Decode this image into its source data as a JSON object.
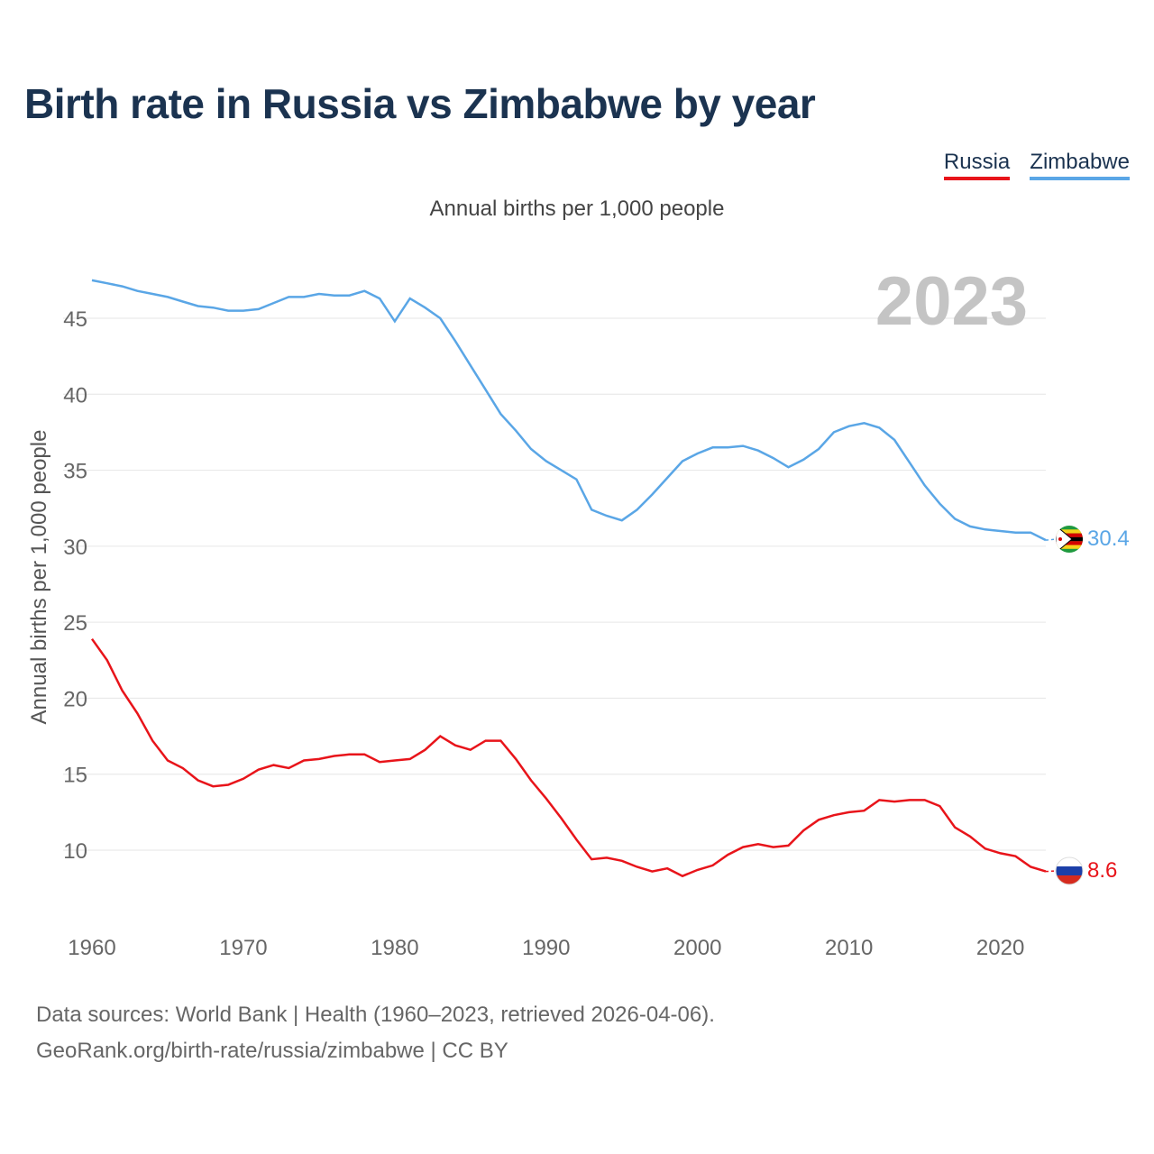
{
  "chart_data": {
    "type": "line",
    "title": "Birth rate in Russia vs Zimbabwe by year",
    "subtitle": "Annual births per 1,000 people",
    "ylabel": "Annual births per 1,000 people",
    "xlabel": "",
    "year_label": "2023",
    "xlim": [
      1960,
      2023
    ],
    "ylim": [
      7,
      48
    ],
    "x_ticks": [
      1960,
      1970,
      1980,
      1990,
      2000,
      2010,
      2020
    ],
    "y_ticks": [
      10,
      15,
      20,
      25,
      30,
      35,
      40,
      45
    ],
    "x": [
      1960,
      1961,
      1962,
      1963,
      1964,
      1965,
      1966,
      1967,
      1968,
      1969,
      1970,
      1971,
      1972,
      1973,
      1974,
      1975,
      1976,
      1977,
      1978,
      1979,
      1980,
      1981,
      1982,
      1983,
      1984,
      1985,
      1986,
      1987,
      1988,
      1989,
      1990,
      1991,
      1992,
      1993,
      1994,
      1995,
      1996,
      1997,
      1998,
      1999,
      2000,
      2001,
      2002,
      2003,
      2004,
      2005,
      2006,
      2007,
      2008,
      2009,
      2010,
      2011,
      2012,
      2013,
      2014,
      2015,
      2016,
      2017,
      2018,
      2019,
      2020,
      2021,
      2022,
      2023
    ],
    "series": [
      {
        "name": "Russia",
        "color": "#e8141a",
        "end_label": "8.6",
        "values": [
          23.9,
          22.5,
          20.5,
          19.0,
          17.2,
          15.9,
          15.4,
          14.6,
          14.2,
          14.3,
          14.7,
          15.3,
          15.6,
          15.4,
          15.9,
          16.0,
          16.2,
          16.3,
          16.3,
          15.8,
          15.9,
          16.0,
          16.6,
          17.5,
          16.9,
          16.6,
          17.2,
          17.2,
          16.0,
          14.6,
          13.4,
          12.1,
          10.7,
          9.4,
          9.5,
          9.3,
          8.9,
          8.6,
          8.8,
          8.3,
          8.7,
          9.0,
          9.7,
          10.2,
          10.4,
          10.2,
          10.3,
          11.3,
          12.0,
          12.3,
          12.5,
          12.6,
          13.3,
          13.2,
          13.3,
          13.3,
          12.9,
          11.5,
          10.9,
          10.1,
          9.8,
          9.6,
          8.9,
          8.6
        ]
      },
      {
        "name": "Zimbabwe",
        "color": "#5aa6e6",
        "end_label": "30.4",
        "values": [
          47.5,
          47.3,
          47.1,
          46.8,
          46.6,
          46.4,
          46.1,
          45.8,
          45.7,
          45.5,
          45.5,
          45.6,
          46.0,
          46.4,
          46.4,
          46.6,
          46.5,
          46.5,
          46.8,
          46.3,
          44.8,
          46.3,
          45.7,
          45.0,
          43.5,
          41.9,
          40.3,
          38.7,
          37.6,
          36.4,
          35.6,
          35.0,
          34.4,
          32.4,
          32.0,
          31.7,
          32.4,
          33.4,
          34.5,
          35.6,
          36.1,
          36.5,
          36.5,
          36.6,
          36.3,
          35.8,
          35.2,
          35.7,
          36.4,
          37.5,
          37.9,
          38.1,
          37.8,
          37.0,
          35.5,
          34.0,
          32.8,
          31.8,
          31.3,
          31.1,
          31.0,
          30.9,
          30.9,
          30.4
        ]
      }
    ]
  },
  "footer": {
    "line1": "Data sources: World Bank | Health (1960–2023, retrieved 2026-04-06).",
    "line2": "GeoRank.org/birth-rate/russia/zimbabwe | CC BY"
  },
  "flags": {
    "russia": {
      "icon": "russia-flag-icon",
      "colors": [
        "#ffffff",
        "#1c3fa8",
        "#d52b1e"
      ]
    },
    "zimbabwe": {
      "icon": "zimbabwe-flag-icon",
      "colors": [
        "#1f9a3f",
        "#f5d21a",
        "#d40000",
        "#000000",
        "#ffffff"
      ]
    }
  }
}
